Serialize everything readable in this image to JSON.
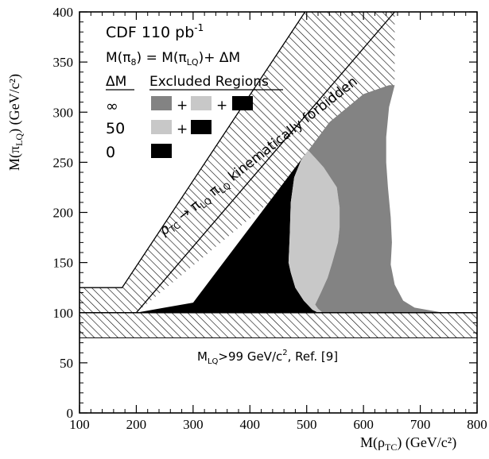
{
  "chart_data": {
    "type": "area",
    "xlabel": "M(ρTC)  (GeV/c²)",
    "xlabel_main": "M(ρ",
    "xlabel_sub": "TC",
    "xlabel_unit": ")  (GeV/c²)",
    "ylabel": "M(πLQ)  (GeV/c²)",
    "ylabel_main": "M(π",
    "ylabel_sub": "LQ",
    "ylabel_unit": ")  (GeV/c²)",
    "xlim": [
      100,
      800
    ],
    "ylim": [
      0,
      400
    ],
    "x_ticks": [
      "100",
      "200",
      "300",
      "400",
      "500",
      "600",
      "700",
      "800"
    ],
    "y_ticks": [
      "0",
      "50",
      "100",
      "150",
      "200",
      "250",
      "300",
      "350",
      "400"
    ],
    "grid": false,
    "annotations": {
      "experiment": "CDF 110 pb",
      "experiment_sup": "-1",
      "mass_relation": "M(π8) = M(πLQ)+ ΔM",
      "mass_relation_a": "M(π",
      "mass_relation_a_sub": "8",
      "mass_relation_b": ") = M(π",
      "mass_relation_b_sub": "LQ",
      "mass_relation_c": ")+ ΔM",
      "deltaM_header": "ΔM",
      "regions_header": "Excluded Regions",
      "rows": [
        {
          "deltaM": "∞",
          "legend": "+ +"
        },
        {
          "deltaM": "50",
          "legend": "+"
        },
        {
          "deltaM": "0",
          "legend": ""
        }
      ],
      "plus": "+",
      "forbidden_label_a": "ρ",
      "forbidden_label_a_sub": "TC",
      "forbidden_label_b": " → π",
      "forbidden_label_b_sub": "LQ",
      "forbidden_label_c": " π",
      "forbidden_label_c_sub": "LQ",
      "forbidden_label_d": " kinematically forbidden",
      "lq_limit_a": "M",
      "lq_limit_a_sub": "LQ",
      "lq_limit_b": ">99 GeV/c",
      "lq_limit_b_sup": "2",
      "lq_limit_c": ", Ref. [9]"
    },
    "colors": {
      "deltaM_0": "#000000",
      "deltaM_50": "#c8c8c8",
      "deltaM_inf": "#838383"
    },
    "series": [
      {
        "name": "ΔM = 0",
        "polygon": [
          [
            200,
            100
          ],
          [
            520,
            100
          ],
          [
            510,
            103
          ],
          [
            495,
            112
          ],
          [
            480,
            125
          ],
          [
            472,
            140
          ],
          [
            468,
            150
          ],
          [
            470,
            175
          ],
          [
            472,
            210
          ],
          [
            478,
            235
          ],
          [
            490,
            252
          ],
          [
            500,
            260
          ],
          [
            460,
            230
          ],
          [
            420,
            200
          ],
          [
            380,
            170
          ],
          [
            340,
            140
          ],
          [
            300,
            110
          ],
          [
            250,
            105
          ]
        ]
      },
      {
        "name": "ΔM = 50",
        "polygon": [
          [
            500,
            260
          ],
          [
            503,
            262
          ],
          [
            530,
            245
          ],
          [
            553,
            225
          ],
          [
            558,
            205
          ],
          [
            558,
            185
          ],
          [
            555,
            170
          ],
          [
            545,
            150
          ],
          [
            537,
            135
          ],
          [
            525,
            120
          ],
          [
            515,
            108
          ],
          [
            520,
            104
          ],
          [
            528,
            100
          ],
          [
            520,
            100
          ],
          [
            510,
            103
          ],
          [
            495,
            112
          ],
          [
            480,
            125
          ],
          [
            472,
            140
          ],
          [
            468,
            150
          ],
          [
            470,
            175
          ],
          [
            472,
            210
          ],
          [
            478,
            235
          ],
          [
            490,
            252
          ]
        ]
      },
      {
        "name": "ΔM = ∞",
        "polygon": [
          [
            503,
            262
          ],
          [
            540,
            290
          ],
          [
            600,
            318
          ],
          [
            645,
            327
          ],
          [
            655,
            327
          ],
          [
            645,
            305
          ],
          [
            640,
            275
          ],
          [
            640,
            250
          ],
          [
            643,
            225
          ],
          [
            648,
            195
          ],
          [
            650,
            170
          ],
          [
            648,
            148
          ],
          [
            655,
            128
          ],
          [
            670,
            112
          ],
          [
            690,
            105
          ],
          [
            740,
            100
          ],
          [
            528,
            100
          ],
          [
            520,
            104
          ],
          [
            515,
            108
          ],
          [
            525,
            120
          ],
          [
            537,
            135
          ],
          [
            545,
            150
          ],
          [
            555,
            170
          ],
          [
            558,
            185
          ],
          [
            558,
            205
          ],
          [
            553,
            225
          ],
          [
            530,
            245
          ]
        ]
      }
    ],
    "hatched_regions": [
      {
        "name": "kinematically forbidden band",
        "polygon": [
          [
            100,
            125
          ],
          [
            175,
            125
          ],
          [
            525,
            400
          ],
          [
            100,
            400
          ],
          [
            100,
            400
          ],
          [
            100,
            400
          ]
        ]
      },
      {
        "name": "LQ mass limit band",
        "y_range": [
          75,
          100
        ]
      }
    ]
  }
}
